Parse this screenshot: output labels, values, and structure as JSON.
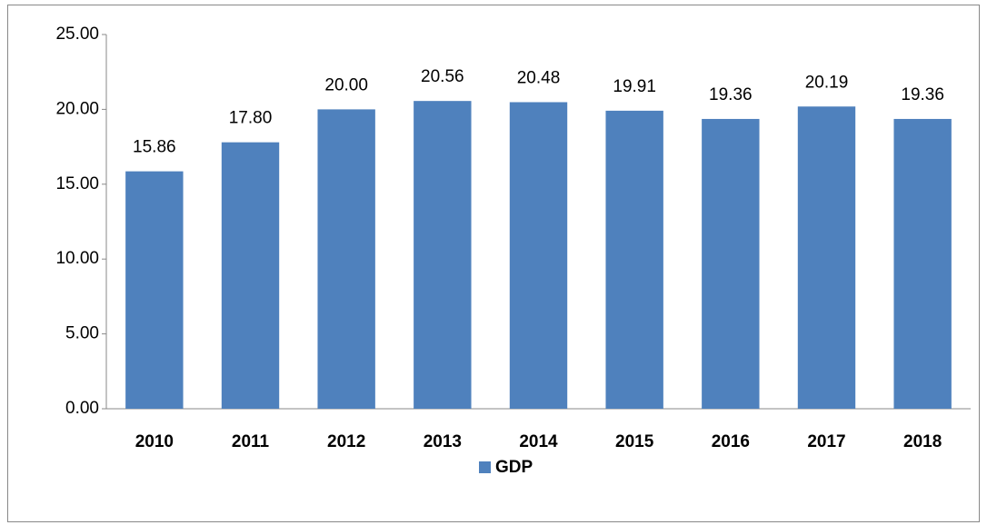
{
  "chart_data": {
    "type": "bar",
    "categories": [
      "2010",
      "2011",
      "2012",
      "2013",
      "2014",
      "2015",
      "2016",
      "2017",
      "2018"
    ],
    "series": [
      {
        "name": "GDP",
        "color": "#4f81bd",
        "values": [
          15.86,
          17.8,
          20.0,
          20.56,
          20.48,
          19.91,
          19.36,
          20.19,
          19.36
        ],
        "value_labels": [
          "15.86",
          "17.80",
          "20.00",
          "20.56",
          "20.48",
          "19.91",
          "19.36",
          "20.19",
          "19.36"
        ]
      }
    ],
    "ylim": [
      0,
      25
    ],
    "yticks": [
      {
        "value": 0,
        "label": "0.00"
      },
      {
        "value": 5,
        "label": "5.00"
      },
      {
        "value": 10,
        "label": "10.00"
      },
      {
        "value": 15,
        "label": "15.00"
      },
      {
        "value": 20,
        "label": "20.00"
      },
      {
        "value": 25,
        "label": "25.00"
      }
    ],
    "grid": false,
    "legend": "bottom"
  }
}
